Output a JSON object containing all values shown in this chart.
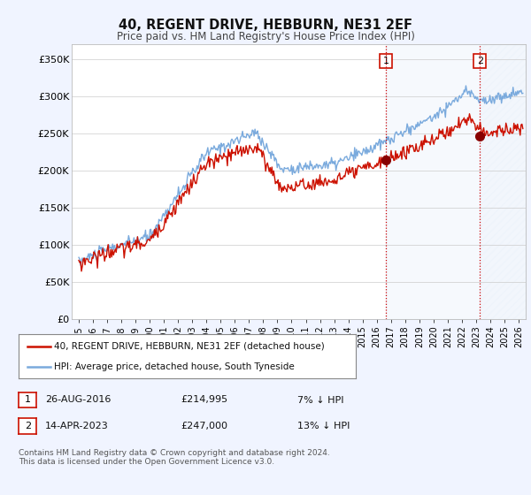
{
  "title": "40, REGENT DRIVE, HEBBURN, NE31 2EF",
  "subtitle": "Price paid vs. HM Land Registry's House Price Index (HPI)",
  "ylabel_ticks": [
    "£0",
    "£50K",
    "£100K",
    "£150K",
    "£200K",
    "£250K",
    "£300K",
    "£350K"
  ],
  "ytick_vals": [
    0,
    50000,
    100000,
    150000,
    200000,
    250000,
    300000,
    350000
  ],
  "ylim": [
    0,
    370000
  ],
  "xlim_start": 1994.5,
  "xlim_end": 2026.5,
  "hpi_color": "#7aaadd",
  "price_color": "#cc1100",
  "sale1_x": 2016.65,
  "sale1_y": 214995,
  "sale2_x": 2023.28,
  "sale2_y": 247000,
  "vline_color": "#cc0000",
  "shade1_start": 2016.65,
  "shade2_start": 2023.28,
  "legend_line1": "40, REGENT DRIVE, HEBBURN, NE31 2EF (detached house)",
  "legend_line2": "HPI: Average price, detached house, South Tyneside",
  "table_row1": [
    "1",
    "26-AUG-2016",
    "£214,995",
    "7% ↓ HPI"
  ],
  "table_row2": [
    "2",
    "14-APR-2023",
    "£247,000",
    "13% ↓ HPI"
  ],
  "footer": "Contains HM Land Registry data © Crown copyright and database right 2024.\nThis data is licensed under the Open Government Licence v3.0.",
  "background_color": "#f0f4ff",
  "plot_bg_color": "#ffffff",
  "shade_color": "#dce8f8",
  "label1_text": "1",
  "label2_text": "2"
}
